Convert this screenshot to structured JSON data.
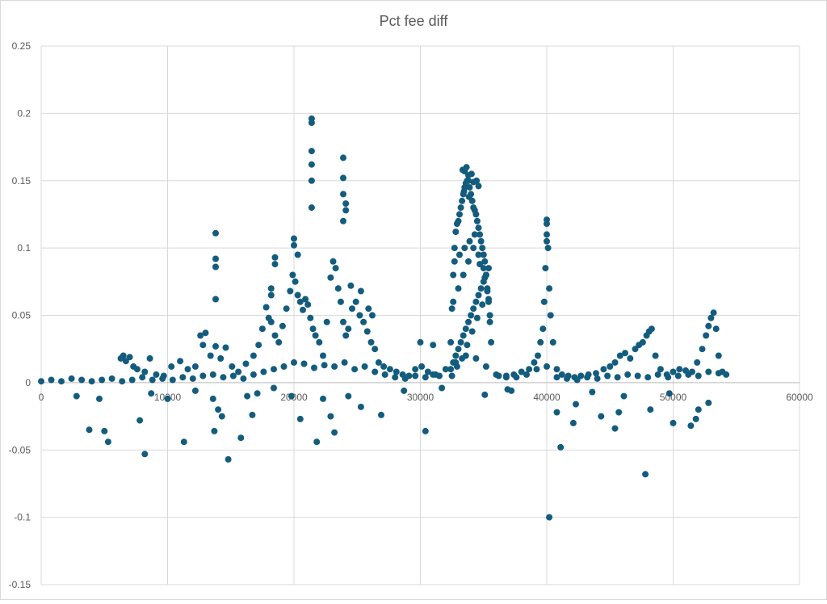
{
  "chart_data": {
    "type": "scatter",
    "title": "Pct fee diff",
    "xlabel": "",
    "ylabel": "",
    "xlim": [
      0,
      60000
    ],
    "ylim": [
      -0.15,
      0.25
    ],
    "x_ticks": [
      0,
      10000,
      20000,
      30000,
      40000,
      50000,
      60000
    ],
    "y_ticks": [
      -0.15,
      -0.1,
      -0.05,
      0,
      0.05,
      0.1,
      0.15,
      0.2,
      0.25
    ],
    "x_tick_labels": [
      "0",
      "10000",
      "20000",
      "30000",
      "40000",
      "50000",
      "60000"
    ],
    "y_tick_labels": [
      "-0.15",
      "-0.1",
      "-0.05",
      "0",
      "0.05",
      "0.1",
      "0.15",
      "0.2",
      "0.25"
    ],
    "grid": true,
    "legend": "none",
    "marker_color": "#145c7e",
    "series": [
      {
        "x": [
          0,
          800,
          1600,
          2400,
          3200,
          4000,
          4800,
          5600,
          6400,
          7200,
          8000,
          8800,
          9600,
          10400,
          11200,
          12000,
          12800,
          13600,
          14400,
          15200,
          16000,
          16800,
          17600,
          18400,
          19200,
          20000,
          20800,
          21600,
          22400,
          23200,
          24000,
          24800,
          25600,
          26400,
          27200,
          28000,
          28800,
          29600,
          30400,
          31200,
          32000,
          32800,
          33600,
          34400,
          35200,
          36000,
          36800,
          37600,
          38400,
          39200,
          40000,
          40800,
          41600,
          42400,
          43200,
          44000,
          44800,
          45600,
          46400,
          47200,
          48000,
          48800,
          49600,
          50400,
          51200,
          52000,
          52800,
          53600,
          54200,
          6300,
          6500,
          6700,
          7000,
          7300,
          7600,
          8200,
          8600,
          9100,
          9700,
          10300,
          11000,
          11600,
          12200,
          12600,
          12800,
          13000,
          13400,
          13800,
          14200,
          14600,
          15100,
          15600,
          16200,
          16800,
          17200,
          17500,
          17800,
          18000,
          18200,
          18500,
          18800,
          19100,
          19400,
          19700,
          19900,
          20100,
          20300,
          20500,
          20700,
          20900,
          21100,
          21300,
          21500,
          21700,
          22000,
          22300,
          22600,
          22900,
          23100,
          23300,
          23500,
          23700,
          23900,
          24100,
          24300,
          24600,
          24900,
          25200,
          25500,
          25800,
          26100,
          26400,
          26700,
          27100,
          27600,
          28100,
          28600,
          29100,
          29600,
          30100,
          30600,
          31000,
          31500,
          32400,
          32500,
          32600,
          32700,
          32800,
          32900,
          33000,
          33100,
          33200,
          33300,
          33400,
          33500,
          33600,
          33700,
          33800,
          33900,
          34000,
          34100,
          34200,
          34300,
          34400,
          34500,
          34600,
          34700,
          34800,
          34900,
          35000,
          35100,
          35200,
          35300,
          35400,
          35500,
          35600,
          32400,
          32600,
          32800,
          33000,
          33200,
          33400,
          33600,
          33800,
          34000,
          34200,
          34400,
          34600,
          34800,
          35000,
          35200,
          35400,
          32500,
          32900,
          33300,
          33700,
          34100,
          34500,
          34900,
          35300,
          32700,
          33100,
          33500,
          33900,
          34300,
          34700,
          35100,
          35500,
          32600,
          33000,
          33400,
          33800,
          34200,
          34600,
          35000,
          35400,
          33350,
          33650,
          34050,
          34450,
          33450,
          33850,
          36200,
          36800,
          37400,
          38000,
          38600,
          39000,
          39300,
          39500,
          39700,
          39800,
          39900,
          40000,
          40100,
          40200,
          40300,
          40500,
          40800,
          41200,
          41700,
          42200,
          42700,
          43300,
          43900,
          44500,
          45000,
          45400,
          45800,
          46200,
          46600,
          47000,
          47300,
          47600,
          47900,
          48100,
          48300,
          48600,
          49000,
          49500,
          50000,
          50500,
          51000,
          51500,
          51900,
          52300,
          52600,
          52800,
          53000,
          53200,
          53400,
          53600,
          53900,
          3800,
          5000,
          5300,
          7800,
          8200,
          10000,
          11300,
          13700,
          14800,
          15800,
          16700,
          20500,
          21800,
          22900,
          23200,
          26900,
          30400,
          40200,
          40800,
          41100,
          42100,
          42300,
          44300,
          45400,
          45700,
          47800,
          48200,
          50000,
          51400,
          51800,
          52000,
          52800,
          19800,
          22300,
          25300,
          37200,
          13600,
          14000,
          14300,
          2800,
          4600,
          8700,
          12200,
          16300,
          17100,
          18400,
          24300,
          28700,
          31700,
          35100,
          36900,
          43600,
          46100,
          49700,
          13800,
          13800,
          13800,
          13800,
          21400,
          21400,
          21400,
          21400,
          21400,
          21400,
          23900,
          23900,
          23900,
          23900,
          24100,
          24100,
          20000,
          20000,
          20300,
          18500,
          18500,
          18200,
          18200,
          40000,
          40000,
          40000,
          24500,
          25300,
          25900,
          26200,
          33500,
          33800,
          34200,
          34600,
          30000,
          31000
        ],
        "y": [
          0.001,
          0.002,
          0.001,
          0.003,
          0.002,
          0.001,
          0.002,
          0.003,
          0.001,
          0.002,
          0.004,
          0.002,
          0.003,
          0.002,
          0.004,
          0.003,
          0.005,
          0.006,
          0.004,
          0.005,
          0.003,
          0.006,
          0.008,
          0.01,
          0.012,
          0.015,
          0.014,
          0.011,
          0.013,
          0.012,
          0.015,
          0.01,
          0.012,
          0.008,
          0.006,
          0.004,
          0.003,
          0.005,
          0.004,
          0.006,
          0.01,
          0.015,
          0.02,
          0.018,
          0.012,
          0.006,
          0.005,
          0.004,
          0.006,
          0.01,
          0.012,
          0.004,
          0.003,
          0.002,
          0.004,
          0.003,
          0.005,
          0.004,
          0.006,
          0.005,
          0.004,
          0.006,
          0.004,
          0.005,
          0.006,
          0.005,
          0.008,
          0.007,
          0.006,
          0.018,
          0.02,
          0.016,
          0.019,
          0.012,
          0.01,
          0.008,
          0.018,
          0.006,
          0.005,
          0.012,
          0.016,
          0.01,
          0.012,
          0.035,
          0.028,
          0.037,
          0.02,
          0.027,
          0.018,
          0.026,
          0.012,
          0.008,
          0.014,
          0.02,
          0.028,
          0.04,
          0.056,
          0.048,
          0.045,
          0.035,
          0.03,
          0.042,
          0.055,
          0.068,
          0.08,
          0.075,
          0.065,
          0.06,
          0.054,
          0.062,
          0.058,
          0.048,
          0.04,
          0.035,
          0.03,
          0.02,
          0.045,
          0.078,
          0.09,
          0.085,
          0.07,
          0.06,
          0.045,
          0.035,
          0.04,
          0.055,
          0.06,
          0.05,
          0.045,
          0.038,
          0.03,
          0.025,
          0.015,
          0.012,
          0.01,
          0.008,
          0.006,
          0.005,
          0.01,
          0.012,
          0.008,
          0.006,
          0.005,
          0.03,
          0.055,
          0.08,
          0.1,
          0.112,
          0.118,
          0.12,
          0.125,
          0.13,
          0.135,
          0.14,
          0.145,
          0.148,
          0.15,
          0.15,
          0.145,
          0.14,
          0.135,
          0.13,
          0.128,
          0.125,
          0.12,
          0.115,
          0.11,
          0.105,
          0.1,
          0.095,
          0.09,
          0.08,
          0.07,
          0.06,
          0.045,
          0.03,
          0.01,
          0.015,
          0.02,
          0.025,
          0.03,
          0.035,
          0.04,
          0.045,
          0.05,
          0.055,
          0.06,
          0.065,
          0.07,
          0.075,
          0.08,
          0.085,
          0.005,
          0.012,
          0.018,
          0.028,
          0.038,
          0.048,
          0.058,
          0.068,
          0.09,
          0.095,
          0.1,
          0.105,
          0.11,
          0.088,
          0.078,
          0.05,
          0.06,
          0.07,
          0.08,
          0.09,
          0.1,
          0.095,
          0.085,
          0.062,
          0.158,
          0.16,
          0.155,
          0.15,
          0.142,
          0.138,
          0.005,
          0.004,
          0.006,
          0.008,
          0.01,
          0.015,
          0.02,
          0.03,
          0.04,
          0.06,
          0.085,
          0.11,
          0.1,
          0.07,
          0.05,
          0.03,
          0.01,
          0.006,
          0.005,
          0.004,
          0.005,
          0.006,
          0.007,
          0.01,
          0.012,
          0.015,
          0.02,
          0.022,
          0.018,
          0.025,
          0.028,
          0.03,
          0.035,
          0.038,
          0.04,
          0.02,
          0.01,
          0.006,
          0.008,
          0.01,
          0.009,
          0.008,
          0.015,
          0.025,
          0.035,
          0.042,
          0.048,
          0.052,
          0.04,
          0.02,
          0.008,
          -0.035,
          -0.036,
          -0.044,
          -0.028,
          -0.053,
          -0.012,
          -0.044,
          -0.036,
          -0.057,
          -0.041,
          -0.024,
          -0.027,
          -0.044,
          -0.025,
          -0.037,
          -0.024,
          -0.036,
          -0.1,
          -0.022,
          -0.048,
          -0.03,
          -0.016,
          -0.025,
          -0.034,
          -0.022,
          -0.068,
          -0.02,
          -0.03,
          -0.032,
          -0.027,
          -0.02,
          -0.015,
          -0.01,
          -0.012,
          -0.018,
          -0.006,
          -0.012,
          -0.02,
          -0.025,
          -0.01,
          -0.012,
          -0.008,
          -0.006,
          -0.01,
          -0.008,
          -0.004,
          -0.01,
          -0.006,
          -0.004,
          -0.009,
          -0.005,
          -0.007,
          -0.01,
          -0.008,
          0.111,
          0.092,
          0.086,
          0.062,
          0.196,
          0.193,
          0.172,
          0.162,
          0.15,
          0.13,
          0.167,
          0.152,
          0.14,
          0.12,
          0.133,
          0.128,
          0.107,
          0.102,
          0.095,
          0.093,
          0.088,
          0.07,
          0.065,
          0.121,
          0.118,
          0.105,
          0.072,
          0.068,
          0.055,
          0.05,
          0.157,
          0.154,
          0.149,
          0.146,
          0.03,
          0.028
        ]
      }
    ]
  }
}
